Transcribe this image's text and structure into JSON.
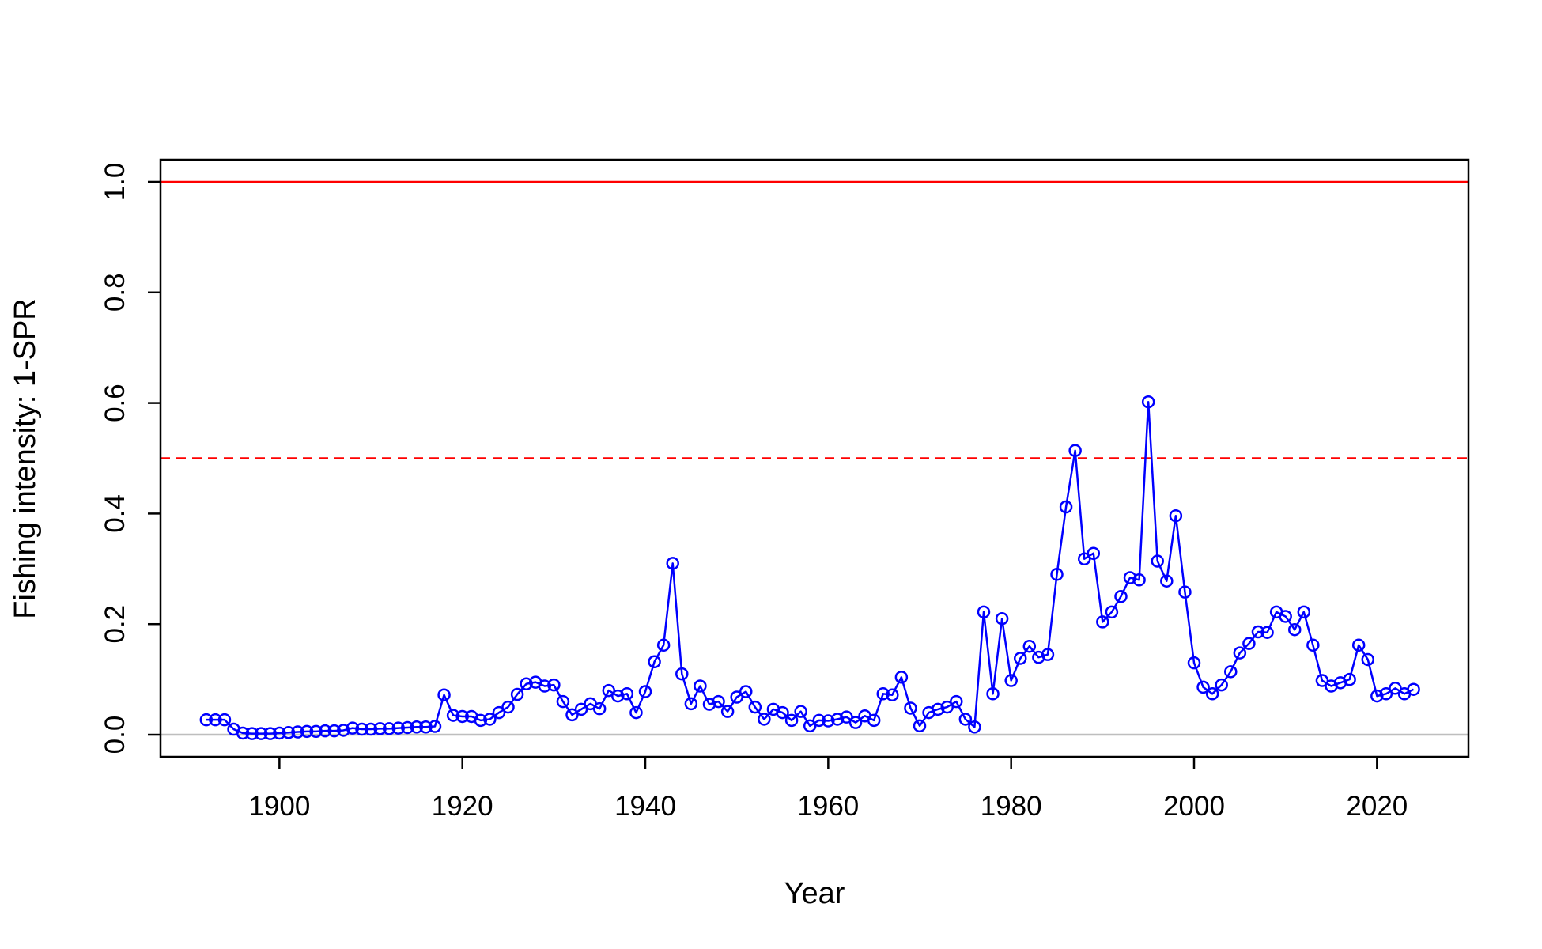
{
  "chart_data": {
    "type": "line",
    "title": "",
    "xlabel": "Year",
    "ylabel": "Fishing intensity: 1-SPR",
    "xlim": [
      1887,
      2030
    ],
    "ylim": [
      -0.04,
      1.04
    ],
    "x_ticks": [
      1900,
      1920,
      1940,
      1960,
      1980,
      2000,
      2020
    ],
    "y_ticks": [
      0.0,
      0.2,
      0.4,
      0.6,
      0.8,
      1.0
    ],
    "x_tick_labels": [
      "1900",
      "1920",
      "1940",
      "1960",
      "1980",
      "2000",
      "2020"
    ],
    "y_tick_labels": [
      "0.0",
      "0.2",
      "0.4",
      "0.6",
      "0.8",
      "1.0"
    ],
    "grid": false,
    "legend": "none",
    "reference_lines": [
      {
        "y": 1.0,
        "color": "#ff0000",
        "style": "solid"
      },
      {
        "y": 0.5,
        "color": "#ff0000",
        "style": "dashed"
      },
      {
        "y": 0.0,
        "color": "#bebebe",
        "style": "solid"
      }
    ],
    "series": [
      {
        "color": "#0000ff",
        "marker": "open-circle",
        "points": [
          [
            1892,
            0.027
          ],
          [
            1893,
            0.027
          ],
          [
            1894,
            0.027
          ],
          [
            1895,
            0.01
          ],
          [
            1896,
            0.003
          ],
          [
            1897,
            0.002
          ],
          [
            1898,
            0.002
          ],
          [
            1899,
            0.002
          ],
          [
            1900,
            0.003
          ],
          [
            1901,
            0.004
          ],
          [
            1902,
            0.005
          ],
          [
            1903,
            0.006
          ],
          [
            1904,
            0.006
          ],
          [
            1905,
            0.007
          ],
          [
            1906,
            0.007
          ],
          [
            1907,
            0.008
          ],
          [
            1908,
            0.012
          ],
          [
            1909,
            0.01
          ],
          [
            1910,
            0.01
          ],
          [
            1911,
            0.011
          ],
          [
            1912,
            0.011
          ],
          [
            1913,
            0.012
          ],
          [
            1914,
            0.013
          ],
          [
            1915,
            0.014
          ],
          [
            1916,
            0.014
          ],
          [
            1917,
            0.015
          ],
          [
            1918,
            0.072
          ],
          [
            1919,
            0.035
          ],
          [
            1920,
            0.033
          ],
          [
            1921,
            0.033
          ],
          [
            1922,
            0.026
          ],
          [
            1923,
            0.028
          ],
          [
            1924,
            0.04
          ],
          [
            1925,
            0.05
          ],
          [
            1926,
            0.073
          ],
          [
            1927,
            0.092
          ],
          [
            1928,
            0.095
          ],
          [
            1929,
            0.088
          ],
          [
            1930,
            0.09
          ],
          [
            1931,
            0.06
          ],
          [
            1932,
            0.036
          ],
          [
            1933,
            0.046
          ],
          [
            1934,
            0.056
          ],
          [
            1935,
            0.047
          ],
          [
            1936,
            0.08
          ],
          [
            1937,
            0.07
          ],
          [
            1938,
            0.074
          ],
          [
            1939,
            0.04
          ],
          [
            1940,
            0.078
          ],
          [
            1941,
            0.132
          ],
          [
            1942,
            0.162
          ],
          [
            1943,
            0.31
          ],
          [
            1944,
            0.11
          ],
          [
            1945,
            0.056
          ],
          [
            1946,
            0.088
          ],
          [
            1947,
            0.055
          ],
          [
            1948,
            0.06
          ],
          [
            1949,
            0.042
          ],
          [
            1950,
            0.068
          ],
          [
            1951,
            0.078
          ],
          [
            1952,
            0.05
          ],
          [
            1953,
            0.028
          ],
          [
            1954,
            0.046
          ],
          [
            1955,
            0.04
          ],
          [
            1956,
            0.026
          ],
          [
            1957,
            0.042
          ],
          [
            1958,
            0.016
          ],
          [
            1959,
            0.026
          ],
          [
            1960,
            0.025
          ],
          [
            1961,
            0.028
          ],
          [
            1962,
            0.032
          ],
          [
            1963,
            0.022
          ],
          [
            1964,
            0.034
          ],
          [
            1965,
            0.026
          ],
          [
            1966,
            0.074
          ],
          [
            1967,
            0.072
          ],
          [
            1968,
            0.104
          ],
          [
            1969,
            0.048
          ],
          [
            1970,
            0.016
          ],
          [
            1971,
            0.04
          ],
          [
            1972,
            0.046
          ],
          [
            1973,
            0.05
          ],
          [
            1974,
            0.06
          ],
          [
            1975,
            0.028
          ],
          [
            1976,
            0.014
          ],
          [
            1977,
            0.222
          ],
          [
            1978,
            0.074
          ],
          [
            1979,
            0.21
          ],
          [
            1980,
            0.098
          ],
          [
            1981,
            0.138
          ],
          [
            1982,
            0.16
          ],
          [
            1983,
            0.14
          ],
          [
            1984,
            0.145
          ],
          [
            1985,
            0.29
          ],
          [
            1986,
            0.412
          ],
          [
            1987,
            0.514
          ],
          [
            1988,
            0.318
          ],
          [
            1989,
            0.328
          ],
          [
            1990,
            0.204
          ],
          [
            1991,
            0.222
          ],
          [
            1992,
            0.25
          ],
          [
            1993,
            0.284
          ],
          [
            1994,
            0.28
          ],
          [
            1995,
            0.602
          ],
          [
            1996,
            0.314
          ],
          [
            1997,
            0.278
          ],
          [
            1998,
            0.396
          ],
          [
            1999,
            0.258
          ],
          [
            2000,
            0.13
          ],
          [
            2001,
            0.086
          ],
          [
            2002,
            0.074
          ],
          [
            2003,
            0.09
          ],
          [
            2004,
            0.114
          ],
          [
            2005,
            0.148
          ],
          [
            2006,
            0.165
          ],
          [
            2007,
            0.186
          ],
          [
            2008,
            0.185
          ],
          [
            2009,
            0.222
          ],
          [
            2010,
            0.214
          ],
          [
            2011,
            0.19
          ],
          [
            2012,
            0.222
          ],
          [
            2013,
            0.162
          ],
          [
            2014,
            0.098
          ],
          [
            2015,
            0.088
          ],
          [
            2016,
            0.094
          ],
          [
            2017,
            0.1
          ],
          [
            2018,
            0.162
          ],
          [
            2019,
            0.136
          ],
          [
            2020,
            0.07
          ],
          [
            2021,
            0.074
          ],
          [
            2022,
            0.084
          ],
          [
            2023,
            0.074
          ],
          [
            2024,
            0.082
          ]
        ]
      }
    ]
  }
}
